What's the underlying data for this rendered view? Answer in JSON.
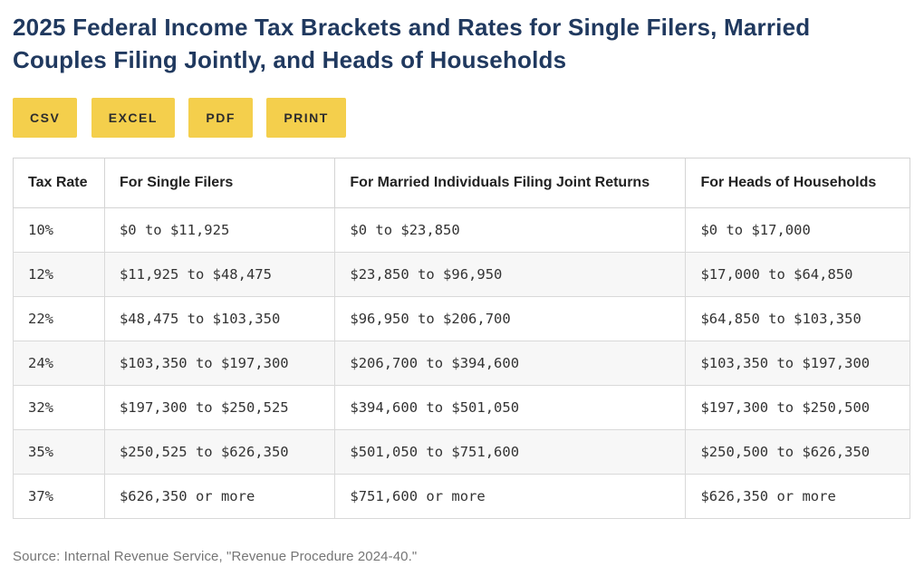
{
  "page": {
    "title": "2025 Federal Income Tax Brackets and Rates for Single Filers, Married Couples Filing Jointly, and Heads of Households"
  },
  "toolbar": {
    "buttons": [
      "CSV",
      "EXCEL",
      "PDF",
      "PRINT"
    ]
  },
  "chart_data": {
    "type": "table",
    "title": "2025 Federal Income Tax Brackets and Rates for Single Filers, Married Couples Filing Jointly, and Heads of Households",
    "columns": [
      "Tax Rate",
      "For Single Filers",
      "For Married Individuals Filing Joint Returns",
      "For Heads of Households"
    ],
    "rows": [
      [
        "10%",
        "$0 to $11,925",
        "$0 to $23,850",
        "$0 to $17,000"
      ],
      [
        "12%",
        "$11,925 to $48,475",
        "$23,850 to $96,950",
        "$17,000 to $64,850"
      ],
      [
        "22%",
        "$48,475 to $103,350",
        "$96,950 to $206,700",
        "$64,850 to $103,350"
      ],
      [
        "24%",
        "$103,350 to $197,300",
        "$206,700 to $394,600",
        "$103,350 to $197,300"
      ],
      [
        "32%",
        "$197,300 to $250,525",
        "$394,600 to $501,050",
        "$197,300 to $250,500"
      ],
      [
        "35%",
        "$250,525 to $626,350",
        "$501,050 to $751,600",
        "$250,500 to $626,350"
      ],
      [
        "37%",
        "$626,350 or more",
        "$751,600 or more",
        "$626,350 or more"
      ]
    ],
    "layout": {
      "row_striping": true,
      "grid": true
    }
  },
  "source_note": "Source: Internal Revenue Service, \"Revenue Procedure 2024-40.\"",
  "colors": {
    "title_navy": "#20395f",
    "accent_yellow": "#f4cf4c",
    "row_stripe": "#f7f7f7",
    "table_border": "#d4d4d4",
    "cell_text": "#333333",
    "source_text": "#757575"
  }
}
